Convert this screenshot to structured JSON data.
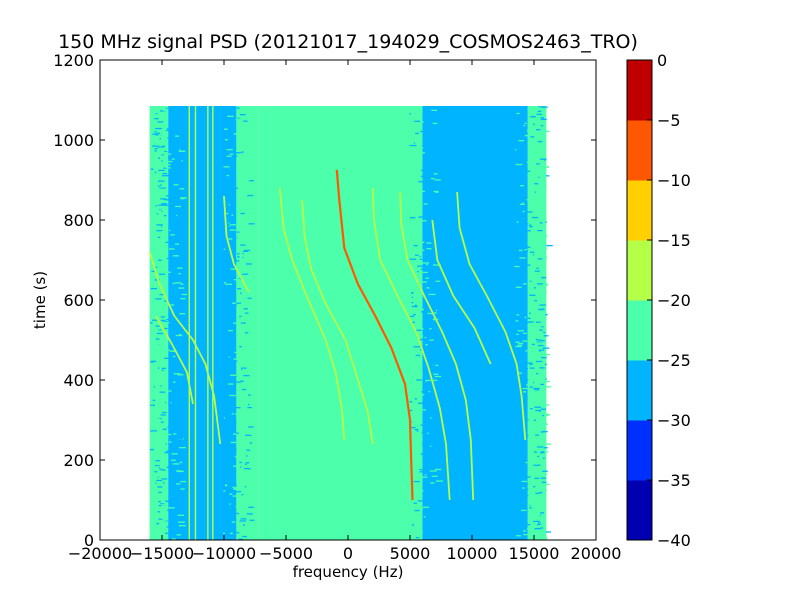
{
  "chart_data": {
    "type": "heatmap",
    "title": "150 MHz signal PSD (20121017_194029_COSMOS2463_TRO)",
    "xlabel": "frequency (Hz)",
    "ylabel": "time (s)",
    "xlim": [
      -20000,
      20000
    ],
    "ylim": [
      0,
      1200
    ],
    "xticks": [
      -20000,
      -15000,
      -10000,
      -5000,
      0,
      5000,
      10000,
      15000,
      20000
    ],
    "xtick_labels": [
      "−20000",
      "−15000",
      "−10000",
      "−5000",
      "0",
      "5000",
      "10000",
      "15000",
      "20000"
    ],
    "yticks": [
      0,
      200,
      400,
      600,
      800,
      1000,
      1200
    ],
    "ytick_labels": [
      "0",
      "200",
      "400",
      "600",
      "800",
      "1000",
      "1200"
    ],
    "data_extent": {
      "freq": [
        -16000,
        16000
      ],
      "time": [
        0,
        1085
      ]
    },
    "colorbar": {
      "levels": [
        -40,
        -35,
        -30,
        -25,
        -20,
        -15,
        -10,
        -5,
        0
      ],
      "tick_labels": [
        "−40",
        "−35",
        "−30",
        "−25",
        "−20",
        "−15",
        "−10",
        "−5",
        "0"
      ],
      "colors": [
        "#0000b0",
        "#0030ff",
        "#00b4ff",
        "#4cffaa",
        "#b4ff48",
        "#ffd000",
        "#ff5800",
        "#c00000"
      ]
    },
    "background_bands": [
      {
        "freq_from": -16000,
        "freq_to": -14500,
        "level": -25
      },
      {
        "freq_from": -14500,
        "freq_to": -9000,
        "level": -30
      },
      {
        "freq_from": -9000,
        "freq_to": -7200,
        "level": -25
      },
      {
        "freq_from": -7200,
        "freq_to": 6000,
        "level": -25
      },
      {
        "freq_from": 6000,
        "freq_to": 14500,
        "level": -30
      },
      {
        "freq_from": 14500,
        "freq_to": 16000,
        "level": -25
      }
    ],
    "vertical_lines": [
      {
        "freq": -12800,
        "level": -20
      },
      {
        "freq": -12300,
        "level": -20
      },
      {
        "freq": -11300,
        "level": -20
      },
      {
        "freq": -10900,
        "level": -20
      }
    ],
    "series": [
      {
        "level": -10,
        "points": [
          [
            -900,
            925
          ],
          [
            -700,
            850
          ],
          [
            -300,
            730
          ],
          [
            800,
            640
          ],
          [
            2200,
            560
          ],
          [
            3500,
            480
          ],
          [
            4600,
            390
          ],
          [
            5000,
            300
          ],
          [
            5100,
            200
          ],
          [
            5200,
            100
          ]
        ]
      },
      {
        "level": -20,
        "points": [
          [
            -5500,
            880
          ],
          [
            -5200,
            780
          ],
          [
            -4500,
            700
          ],
          [
            -3200,
            600
          ],
          [
            -1800,
            500
          ],
          [
            -1000,
            420
          ],
          [
            -500,
            330
          ],
          [
            -300,
            250
          ]
        ]
      },
      {
        "level": -20,
        "points": [
          [
            -3700,
            850
          ],
          [
            -3500,
            760
          ],
          [
            -3000,
            680
          ],
          [
            -1800,
            590
          ],
          [
            -200,
            500
          ],
          [
            700,
            410
          ],
          [
            1600,
            320
          ],
          [
            2000,
            240
          ]
        ]
      },
      {
        "level": -20,
        "points": [
          [
            2000,
            880
          ],
          [
            2100,
            800
          ],
          [
            2600,
            700
          ],
          [
            4000,
            610
          ],
          [
            5500,
            520
          ],
          [
            6500,
            430
          ],
          [
            7400,
            330
          ],
          [
            7900,
            240
          ],
          [
            8200,
            100
          ]
        ]
      },
      {
        "level": -20,
        "points": [
          [
            4200,
            870
          ],
          [
            4300,
            790
          ],
          [
            4800,
            700
          ],
          [
            6000,
            620
          ],
          [
            7600,
            520
          ],
          [
            8700,
            440
          ],
          [
            9500,
            350
          ],
          [
            9900,
            250
          ],
          [
            10100,
            100
          ]
        ]
      },
      {
        "level": -20,
        "points": [
          [
            -16000,
            720
          ],
          [
            -15200,
            640
          ],
          [
            -14000,
            560
          ],
          [
            -12500,
            500
          ],
          [
            -11500,
            440
          ],
          [
            -10800,
            360
          ],
          [
            -10300,
            240
          ]
        ]
      },
      {
        "level": -20,
        "points": [
          [
            -10000,
            860
          ],
          [
            -9800,
            760
          ],
          [
            -9200,
            690
          ],
          [
            -8000,
            620
          ]
        ]
      },
      {
        "level": -20,
        "points": [
          [
            -15500,
            560
          ],
          [
            -14200,
            490
          ],
          [
            -13000,
            420
          ],
          [
            -12500,
            340
          ]
        ]
      },
      {
        "level": -20,
        "points": [
          [
            8800,
            870
          ],
          [
            9000,
            780
          ],
          [
            9800,
            690
          ],
          [
            11200,
            610
          ],
          [
            12700,
            520
          ],
          [
            13600,
            440
          ],
          [
            14000,
            360
          ],
          [
            14300,
            250
          ]
        ]
      },
      {
        "level": -20,
        "points": [
          [
            6800,
            800
          ],
          [
            7200,
            700
          ],
          [
            8500,
            610
          ],
          [
            10200,
            530
          ],
          [
            11500,
            440
          ]
        ]
      }
    ]
  }
}
